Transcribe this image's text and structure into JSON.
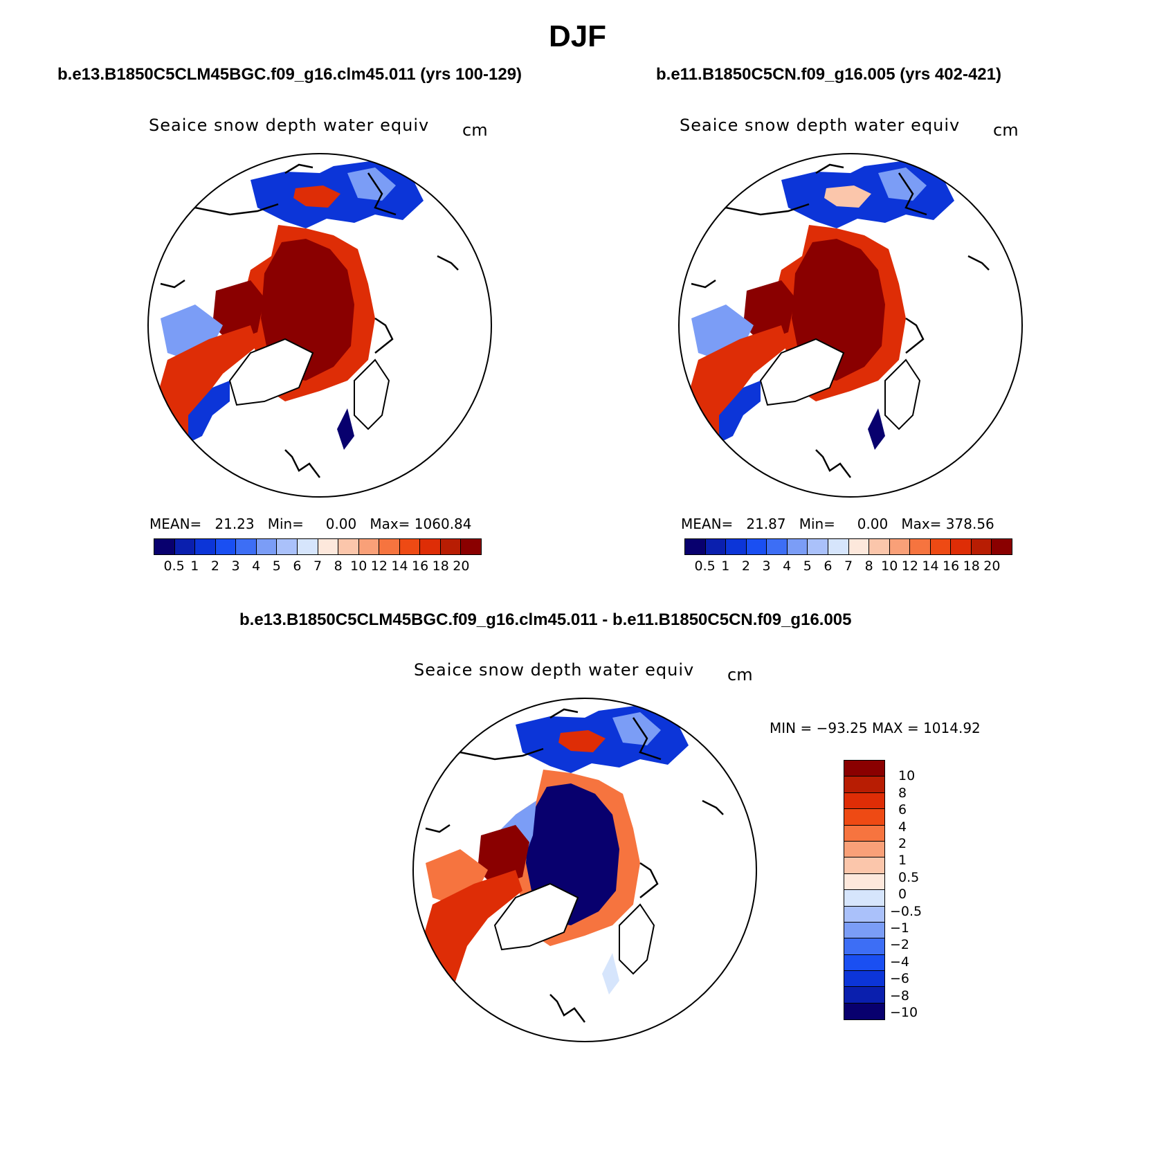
{
  "main_title": "DJF",
  "panels": {
    "left": {
      "case_title": "b.e13.B1850C5CLM45BGC.f09_g16.clm45.011 (yrs 100-129)",
      "plot_title": "Seaice snow depth water equiv",
      "unit": "cm",
      "stats": "MEAN=   21.23   Min=     0.00   Max= 1060.84"
    },
    "right": {
      "case_title": "b.e11.B1850C5CN.f09_g16.005 (yrs 402-421)",
      "plot_title": "Seaice snow depth water equiv",
      "unit": "cm",
      "stats": "MEAN=   21.87   Min=     0.00   Max= 378.56"
    },
    "diff": {
      "case_title": "b.e13.B1850C5CLM45BGC.f09_g16.clm45.011 - b.e11.B1850C5CN.f09_g16.005",
      "plot_title": "Seaice snow depth water equiv",
      "unit": "cm",
      "stats": "MIN = −93.25 MAX = 1014.92"
    }
  },
  "colorbars": {
    "absolute": {
      "ticks": [
        "0.5",
        "1",
        "2",
        "3",
        "4",
        "5",
        "6",
        "7",
        "8",
        "10",
        "12",
        "14",
        "16",
        "18",
        "20"
      ],
      "colors": [
        "#08006e",
        "#0a1fae",
        "#0c35d8",
        "#1a4ff2",
        "#3d6ef5",
        "#7b9df6",
        "#aac1fa",
        "#d6e5fc",
        "#fde8dc",
        "#fbc6ab",
        "#f9a078",
        "#f6743f",
        "#ee4a14",
        "#de2d06",
        "#b81d03",
        "#8a0000"
      ]
    },
    "difference": {
      "ticks": [
        "10",
        "8",
        "6",
        "4",
        "2",
        "1",
        "0.5",
        "0",
        "−0.5",
        "−1",
        "−2",
        "−4",
        "−6",
        "−8",
        "−10"
      ],
      "colors": [
        "#8a0000",
        "#b81d03",
        "#de2d06",
        "#ee4a14",
        "#f6743f",
        "#f9a078",
        "#fbc6ab",
        "#fde8dc",
        "#d6e5fc",
        "#aac1fa",
        "#7b9df6",
        "#3d6ef5",
        "#1a4ff2",
        "#0c35d8",
        "#0a1fae",
        "#08006e"
      ]
    }
  },
  "map_fill": {
    "dark_red": "#8a0000",
    "red": "#de2d06",
    "orange": "#f6743f",
    "light_orange": "#fbc6ab",
    "dark_blue": "#08006e",
    "blue": "#0c35d8",
    "light_blue": "#7b9df6",
    "pale_blue": "#d6e5fc"
  }
}
